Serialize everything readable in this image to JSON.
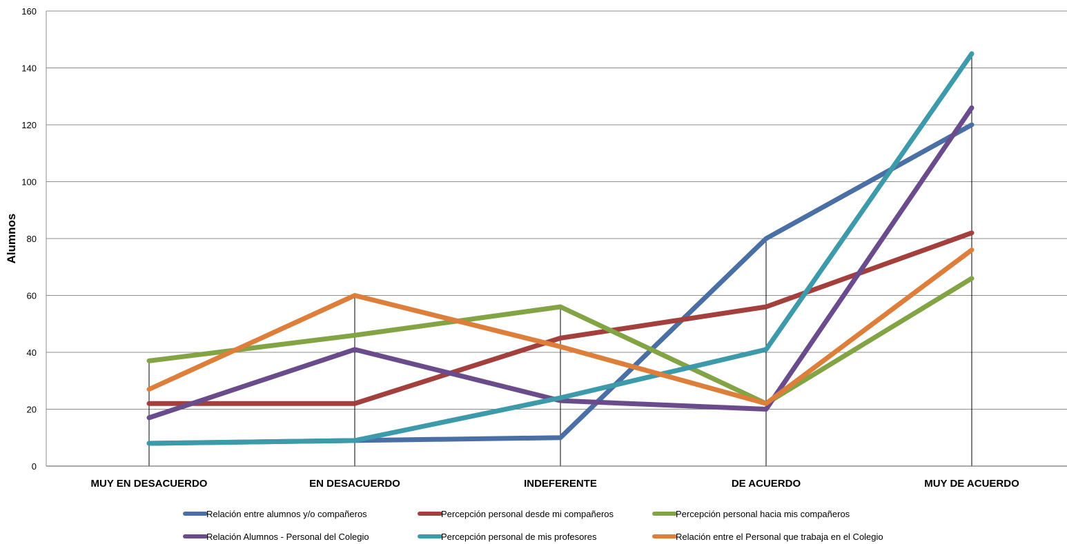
{
  "chart_data": {
    "type": "line",
    "ylabel": "Alumnos",
    "xlabel": "",
    "ylim": [
      0,
      160
    ],
    "yticks": [
      0,
      20,
      40,
      60,
      80,
      100,
      120,
      140,
      160
    ],
    "grid": true,
    "legend_position": "bottom",
    "categories": [
      "MUY EN DESACUERDO",
      "EN DESACUERDO",
      "INDEFERENTE",
      "DE ACUERDO",
      "MUY DE ACUERDO"
    ],
    "series": [
      {
        "name": "Relación entre alumnos y/o compañeros",
        "color": "#4A6FA5",
        "values": [
          8,
          9,
          10,
          80,
          120
        ]
      },
      {
        "name": "Percepción personal desde mi compañeros",
        "color": "#A33F3C",
        "values": [
          22,
          22,
          45,
          56,
          82
        ]
      },
      {
        "name": "Percepción personal hacia mis compañeros",
        "color": "#82A444",
        "values": [
          37,
          46,
          56,
          22,
          66
        ]
      },
      {
        "name": "Relación Alumnos - Personal del Colegio",
        "color": "#6A4C8C",
        "values": [
          17,
          41,
          23,
          20,
          126
        ]
      },
      {
        "name": "Percepción personal de mis profesores",
        "color": "#3C9AAB",
        "values": [
          8,
          9,
          24,
          41,
          145
        ]
      },
      {
        "name": "Relación entre el Personal que trabaja en el Colegio",
        "color": "#DD7F3A",
        "values": [
          27,
          60,
          42,
          22,
          76
        ]
      }
    ]
  }
}
